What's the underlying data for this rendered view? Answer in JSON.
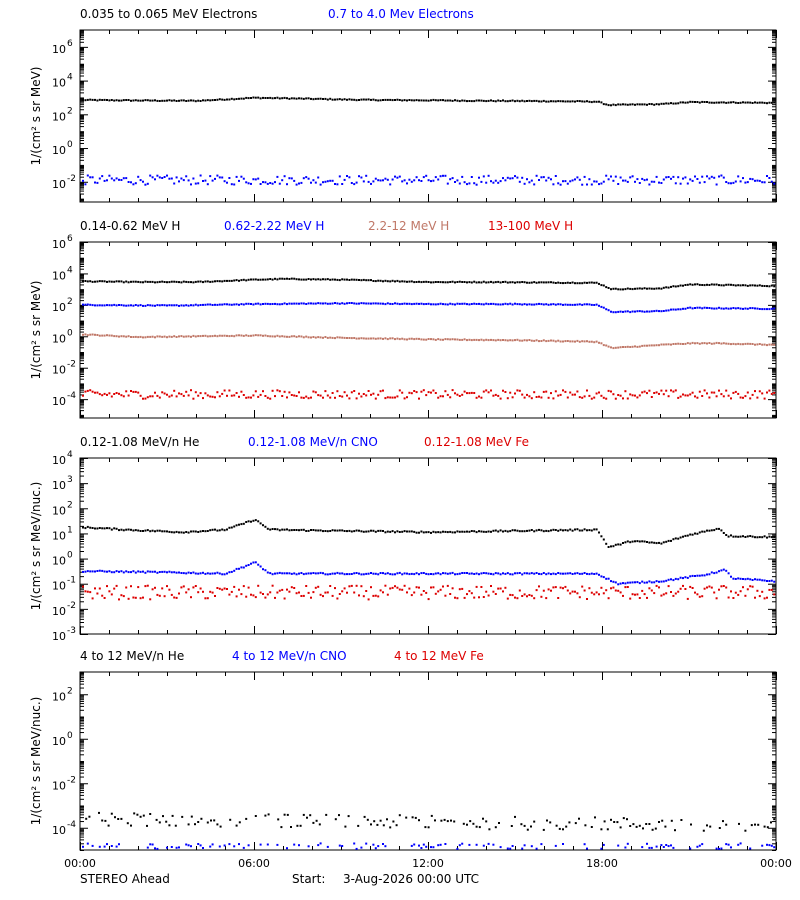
{
  "footer": {
    "spacecraft": "STEREO Ahead",
    "start_label": "Start:",
    "start_value": "3-Aug-2026 00:00 UTC"
  },
  "x_axis": {
    "tick_labels": [
      "00:00",
      "06:00",
      "12:00",
      "18:00",
      "00:00"
    ],
    "tick_hours": [
      0,
      6,
      12,
      18,
      24
    ]
  },
  "chart_data": [
    {
      "type": "scatter",
      "ylabel": "1/(cm² s sr MeV)",
      "yscale": "log",
      "ylim_exp": [
        -3.2,
        7.0
      ],
      "y_tick_exps": [
        -2,
        0,
        2,
        4,
        6
      ],
      "x_hours": [
        0,
        24
      ],
      "series": [
        {
          "name": "0.035 to 0.065 MeV Electrons",
          "color": "#000000",
          "points": [
            [
              0,
              2.85
            ],
            [
              2,
              2.82
            ],
            [
              4,
              2.8
            ],
            [
              6,
              2.98
            ],
            [
              7,
              2.95
            ],
            [
              9,
              2.88
            ],
            [
              10,
              2.85
            ],
            [
              12,
              2.83
            ],
            [
              14,
              2.8
            ],
            [
              16,
              2.78
            ],
            [
              17.8,
              2.75
            ],
            [
              18.2,
              2.55
            ],
            [
              20,
              2.6
            ],
            [
              21,
              2.72
            ],
            [
              24,
              2.68
            ]
          ]
        },
        {
          "name": "0.7 to 4.0 Mev Electrons",
          "color": "#0000ff",
          "points": [
            [
              0,
              -1.9
            ],
            [
              24,
              -1.9
            ]
          ]
        }
      ]
    },
    {
      "type": "scatter",
      "ylabel": "1/(cm² s sr MeV)",
      "yscale": "log",
      "ylim_exp": [
        -5.2,
        6.0
      ],
      "y_tick_exps": [
        -4,
        -2,
        0,
        2,
        4,
        6
      ],
      "x_hours": [
        0,
        24
      ],
      "series": [
        {
          "name": "0.14-0.62 MeV H",
          "color": "#000000",
          "points": [
            [
              0,
              3.5
            ],
            [
              2,
              3.45
            ],
            [
              4,
              3.45
            ],
            [
              6,
              3.6
            ],
            [
              7,
              3.65
            ],
            [
              9,
              3.6
            ],
            [
              10,
              3.55
            ],
            [
              12,
              3.45
            ],
            [
              14,
              3.45
            ],
            [
              16,
              3.42
            ],
            [
              17.8,
              3.4
            ],
            [
              18.3,
              3.0
            ],
            [
              20,
              3.05
            ],
            [
              21,
              3.3
            ],
            [
              24,
              3.2
            ]
          ]
        },
        {
          "name": "0.62-2.22 MeV H",
          "color": "#0000ff",
          "points": [
            [
              0,
              2.0
            ],
            [
              3,
              1.95
            ],
            [
              6,
              2.05
            ],
            [
              9,
              2.1
            ],
            [
              12,
              2.05
            ],
            [
              15,
              2.05
            ],
            [
              17.8,
              2.0
            ],
            [
              18.3,
              1.55
            ],
            [
              20,
              1.6
            ],
            [
              21,
              1.8
            ],
            [
              24,
              1.75
            ]
          ]
        },
        {
          "name": "2.2-12 MeV H",
          "color": "#c07868",
          "points": [
            [
              0,
              0.12
            ],
            [
              2,
              -0.05
            ],
            [
              6,
              0.05
            ],
            [
              9,
              -0.1
            ],
            [
              12,
              -0.2
            ],
            [
              15,
              -0.25
            ],
            [
              17.8,
              -0.35
            ],
            [
              18.3,
              -0.75
            ],
            [
              20,
              -0.55
            ],
            [
              21,
              -0.45
            ],
            [
              22,
              -0.45
            ],
            [
              24,
              -0.55
            ]
          ]
        },
        {
          "name": "13-100 MeV H",
          "color": "#dd0000",
          "points": [
            [
              0,
              -3.7
            ],
            [
              24,
              -3.7
            ]
          ]
        }
      ]
    },
    {
      "type": "scatter",
      "ylabel": "1/(cm² s sr MeV/nuc.)",
      "yscale": "log",
      "ylim_exp": [
        -3.0,
        4.0
      ],
      "y_tick_exps": [
        -3,
        -2,
        -1,
        0,
        1,
        2,
        3,
        4
      ],
      "x_hours": [
        0,
        24
      ],
      "series": [
        {
          "name": "0.12-1.08 MeV/n He",
          "color": "#000000",
          "points": [
            [
              0,
              1.25
            ],
            [
              1.5,
              1.15
            ],
            [
              3.5,
              1.05
            ],
            [
              5.0,
              1.15
            ],
            [
              6.0,
              1.55
            ],
            [
              6.5,
              1.15
            ],
            [
              9,
              1.1
            ],
            [
              12,
              1.05
            ],
            [
              15,
              1.1
            ],
            [
              17.8,
              1.15
            ],
            [
              18.2,
              0.45
            ],
            [
              19,
              0.7
            ],
            [
              20,
              0.6
            ],
            [
              21,
              0.95
            ],
            [
              22,
              1.2
            ],
            [
              22.3,
              0.9
            ],
            [
              24,
              0.85
            ]
          ]
        },
        {
          "name": "0.12-1.08 MeV/n CNO",
          "color": "#0000ff",
          "points": [
            [
              0,
              -0.5
            ],
            [
              3,
              -0.55
            ],
            [
              5,
              -0.6
            ],
            [
              6,
              -0.15
            ],
            [
              6.5,
              -0.6
            ],
            [
              12,
              -0.6
            ],
            [
              17.8,
              -0.6
            ],
            [
              18.5,
              -1.0
            ],
            [
              20,
              -0.9
            ],
            [
              21.5,
              -0.65
            ],
            [
              22.2,
              -0.45
            ],
            [
              22.5,
              -0.8
            ],
            [
              24,
              -0.9
            ]
          ]
        },
        {
          "name": "0.12-1.08 MeV Fe",
          "color": "#dd0000",
          "points": [
            [
              0,
              -1.35
            ],
            [
              24,
              -1.35
            ]
          ]
        }
      ]
    },
    {
      "type": "scatter",
      "ylabel": "1/(cm² s sr MeV/nuc.)",
      "yscale": "log",
      "ylim_exp": [
        -5.0,
        3.0
      ],
      "y_tick_exps": [
        -4,
        -2,
        0,
        2
      ],
      "x_hours": [
        0,
        24
      ],
      "series": [
        {
          "name": "4 to 12 MeV/n He",
          "color": "#000000",
          "points": [
            [
              0,
              -3.6
            ],
            [
              24,
              -3.9
            ]
          ]
        },
        {
          "name": "4 to 12 MeV/n CNO",
          "color": "#0000ff",
          "points": [
            [
              0,
              -5.0
            ],
            [
              24,
              -5.0
            ]
          ]
        },
        {
          "name": "4 to 12 MeV Fe",
          "color": "#dd0000",
          "points": []
        }
      ]
    }
  ]
}
